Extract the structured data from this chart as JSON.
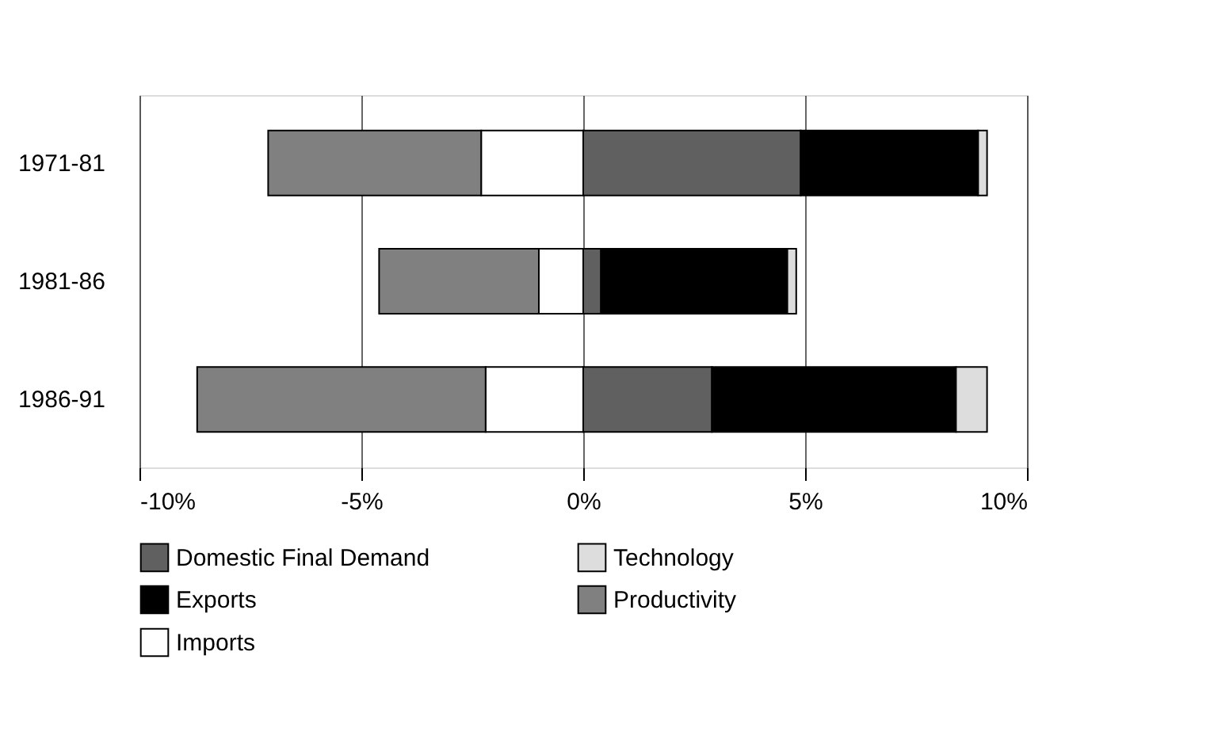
{
  "chart_data": {
    "type": "bar",
    "orientation": "horizontal",
    "stacked": true,
    "categories": [
      "1971-81",
      "1981-86",
      "1986-91"
    ],
    "series": [
      {
        "name": "Domestic Final Demand",
        "color": "#606060",
        "values": [
          4.9,
          0.4,
          2.9
        ]
      },
      {
        "name": "Exports",
        "color": "#000000",
        "values": [
          4.0,
          4.2,
          5.5
        ]
      },
      {
        "name": "Imports",
        "color": "#ffffff",
        "values": [
          -2.3,
          -1.0,
          -2.2
        ]
      },
      {
        "name": "Technology",
        "color": "#dddddd",
        "values": [
          0.2,
          0.2,
          0.7
        ]
      },
      {
        "name": "Productivity",
        "color": "#808080",
        "values": [
          -4.8,
          -3.6,
          -6.5
        ]
      }
    ],
    "xlim": [
      -10,
      10
    ],
    "xticks": [
      {
        "value": -10,
        "label": "-10%"
      },
      {
        "value": -5,
        "label": "-5%"
      },
      {
        "value": 0,
        "label": "0%"
      },
      {
        "value": 5,
        "label": "5%"
      },
      {
        "value": 10,
        "label": "10%"
      }
    ],
    "grid": "x",
    "legend": "bottom"
  }
}
